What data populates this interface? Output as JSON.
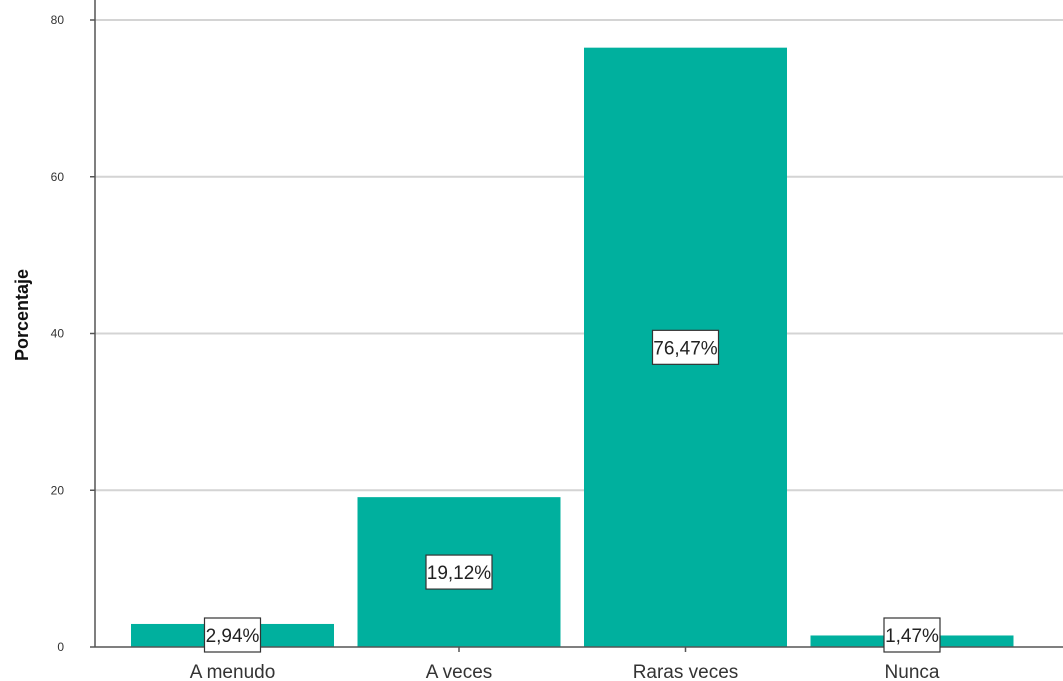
{
  "chart_data": {
    "type": "bar",
    "title": "",
    "xlabel": "",
    "ylabel": "Porcentaje",
    "ylim": [
      0,
      80
    ],
    "yticks": [
      0,
      20,
      40,
      60,
      80
    ],
    "grid": true,
    "categories": [
      "A menudo",
      "A veces",
      "Raras veces",
      "Nunca"
    ],
    "values": [
      2.94,
      19.12,
      76.47,
      1.47
    ],
    "data_labels": [
      "2,94%",
      "19,12%",
      "76,47%",
      "1,47%"
    ],
    "bar_color": "#00b09e"
  }
}
